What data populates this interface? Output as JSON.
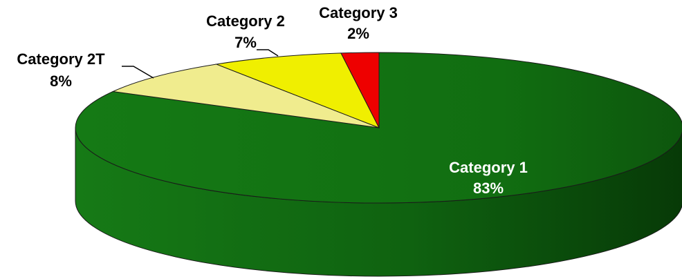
{
  "chart_data": {
    "type": "pie",
    "style": "3d",
    "categories": [
      "Category 1",
      "Category 2T",
      "Category 2",
      "Category 3"
    ],
    "values": [
      83,
      8,
      7,
      2
    ],
    "value_labels": [
      "83%",
      "8%",
      "7%",
      "2%"
    ],
    "colors": [
      "#127212",
      "#f0ec8e",
      "#f0ef00",
      "#ee0000"
    ],
    "side_colors": [
      "#0c5a0c",
      "#a8a660",
      "#a8a700",
      "#a60000"
    ],
    "title": "",
    "legend": "none",
    "labels_on_chart": true
  }
}
